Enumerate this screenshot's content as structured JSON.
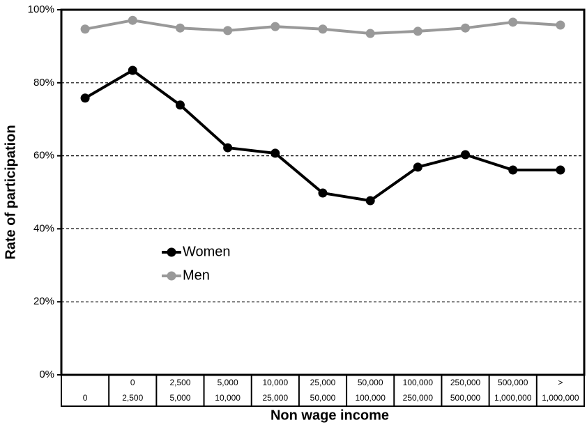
{
  "chart_data": {
    "type": "line",
    "x_label": "Non wage income",
    "y_label": "Rate of participation",
    "categories": [
      [
        "0"
      ],
      [
        "0",
        "2,500"
      ],
      [
        "2,500",
        "5,000"
      ],
      [
        "5,000",
        "10,000"
      ],
      [
        "10,000",
        "25,000"
      ],
      [
        "25,000",
        "50,000"
      ],
      [
        "50,000",
        "100,000"
      ],
      [
        "100,000",
        "250,000"
      ],
      [
        "250,000",
        "500,000"
      ],
      [
        "500,000",
        "1,000,000"
      ],
      [
        ">",
        "1,000,000"
      ]
    ],
    "series": [
      {
        "name": "Women",
        "color": "#000000",
        "values": [
          75.8,
          83.4,
          73.9,
          62.2,
          60.7,
          49.8,
          47.7,
          56.9,
          60.3,
          56.1,
          56.1
        ]
      },
      {
        "name": "Men",
        "color": "#999999",
        "values": [
          94.7,
          97.1,
          95.0,
          94.3,
          95.4,
          94.7,
          93.5,
          94.1,
          95.0,
          96.6,
          95.8
        ]
      }
    ],
    "ylim": [
      0,
      100
    ],
    "yticks": [
      {
        "value": 0,
        "label": "0%"
      },
      {
        "value": 20,
        "label": "20%"
      },
      {
        "value": 40,
        "label": "40%"
      },
      {
        "value": 60,
        "label": "60%"
      },
      {
        "value": 80,
        "label": "80%"
      },
      {
        "value": 100,
        "label": "100%"
      }
    ],
    "grid": true,
    "legend_position": "center-left"
  }
}
